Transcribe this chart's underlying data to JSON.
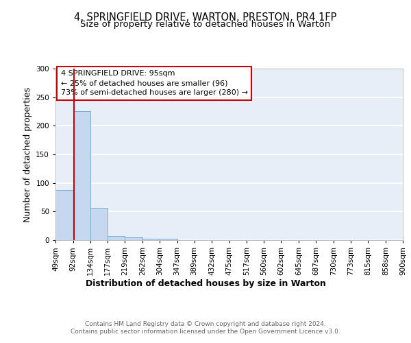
{
  "title1": "4, SPRINGFIELD DRIVE, WARTON, PRESTON, PR4 1FP",
  "title2": "Size of property relative to detached houses in Warton",
  "xlabel": "Distribution of detached houses by size in Warton",
  "ylabel": "Number of detached properties",
  "bar_edges": [
    49,
    92,
    134,
    177,
    219,
    262,
    304,
    347,
    389,
    432,
    475,
    517,
    560,
    602,
    645,
    687,
    730,
    773,
    815,
    858,
    900
  ],
  "bar_heights": [
    88,
    226,
    57,
    7,
    5,
    3,
    2,
    0,
    0,
    0,
    0,
    0,
    0,
    0,
    0,
    0,
    0,
    0,
    0,
    0
  ],
  "bar_color": "#c5d8f0",
  "bar_edgecolor": "#7aafd4",
  "property_size": 95,
  "property_line_color": "#cc0000",
  "annotation_text": "4 SPRINGFIELD DRIVE: 95sqm\n← 25% of detached houses are smaller (96)\n73% of semi-detached houses are larger (280) →",
  "annotation_box_edgecolor": "#cc0000",
  "annotation_box_facecolor": "#ffffff",
  "ylim": [
    0,
    300
  ],
  "yticks": [
    0,
    50,
    100,
    150,
    200,
    250,
    300
  ],
  "xtick_labels": [
    "49sqm",
    "92sqm",
    "134sqm",
    "177sqm",
    "219sqm",
    "262sqm",
    "304sqm",
    "347sqm",
    "389sqm",
    "432sqm",
    "475sqm",
    "517sqm",
    "560sqm",
    "602sqm",
    "645sqm",
    "687sqm",
    "730sqm",
    "773sqm",
    "815sqm",
    "858sqm",
    "900sqm"
  ],
  "footnote": "Contains HM Land Registry data © Crown copyright and database right 2024.\nContains public sector information licensed under the Open Government Licence v3.0.",
  "background_color": "#e8eef8",
  "grid_color": "#ffffff",
  "title1_fontsize": 10.5,
  "title2_fontsize": 9.5,
  "axis_label_fontsize": 9,
  "tick_fontsize": 7.5,
  "annotation_fontsize": 8,
  "footnote_fontsize": 6.5
}
